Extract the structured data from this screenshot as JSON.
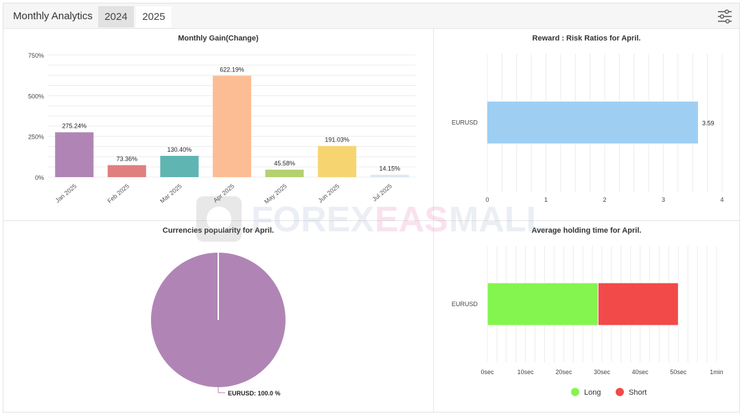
{
  "header": {
    "title": "Monthly Analytics",
    "tabs": [
      {
        "label": "2024",
        "active": false
      },
      {
        "label": "2025",
        "active": true
      }
    ],
    "settings_icon": "sliders-icon"
  },
  "watermark": {
    "text_a": "FOREX",
    "text_b": "EAS",
    "text_c": "MALL"
  },
  "colors": {
    "grid": "#ececec",
    "long": "#84f54e",
    "short": "#f24949",
    "rr": "#9ecff3",
    "pie": "#b085b5"
  },
  "chart_data": [
    {
      "type": "bar",
      "title": "Monthly Gain(Change)",
      "categories": [
        "Jan 2025",
        "Feb 2025",
        "Mar 2025",
        "Apr 2025",
        "May 2025",
        "Jun 2025",
        "Jul 2025"
      ],
      "values": [
        275.24,
        73.36,
        130.4,
        622.19,
        45.58,
        191.03,
        14.15
      ],
      "data_labels": [
        "275.24%",
        "73.36%",
        "130.40%",
        "622.19%",
        "45.58%",
        "191.03%",
        "14.15%"
      ],
      "colors": [
        "#b085b5",
        "#e07f7f",
        "#5fb5b2",
        "#fdbd94",
        "#b2d16f",
        "#f6d571",
        "#dbe8f4"
      ],
      "yticks": [
        "0%",
        "250%",
        "500%",
        "750%"
      ],
      "ylim": [
        0,
        750
      ],
      "grid": true
    },
    {
      "type": "bar",
      "orientation": "horizontal",
      "title": "Reward : Risk Ratios for April.",
      "categories": [
        "EURUSD"
      ],
      "values": [
        3.59
      ],
      "data_labels": [
        "3.59"
      ],
      "xticks": [
        "0",
        "1",
        "2",
        "3",
        "4"
      ],
      "xlim": [
        0,
        4
      ],
      "grid": true
    },
    {
      "type": "pie",
      "title": "Currencies popularity for April.",
      "slices": [
        {
          "label": "EURUSD",
          "value": 100.0
        }
      ],
      "data_labels": [
        "EURUSD: 100.0 %"
      ]
    },
    {
      "type": "bar",
      "orientation": "horizontal",
      "stacked": true,
      "title": "Average holding time for April.",
      "categories": [
        "EURUSD"
      ],
      "series": [
        {
          "name": "Long",
          "values": [
            29
          ]
        },
        {
          "name": "Short",
          "values": [
            21
          ]
        }
      ],
      "xticks": [
        "0sec",
        "10sec",
        "20sec",
        "30sec",
        "40sec",
        "50sec",
        "1min"
      ],
      "xlim": [
        0,
        60
      ],
      "legend": "bottom",
      "grid": true
    }
  ]
}
